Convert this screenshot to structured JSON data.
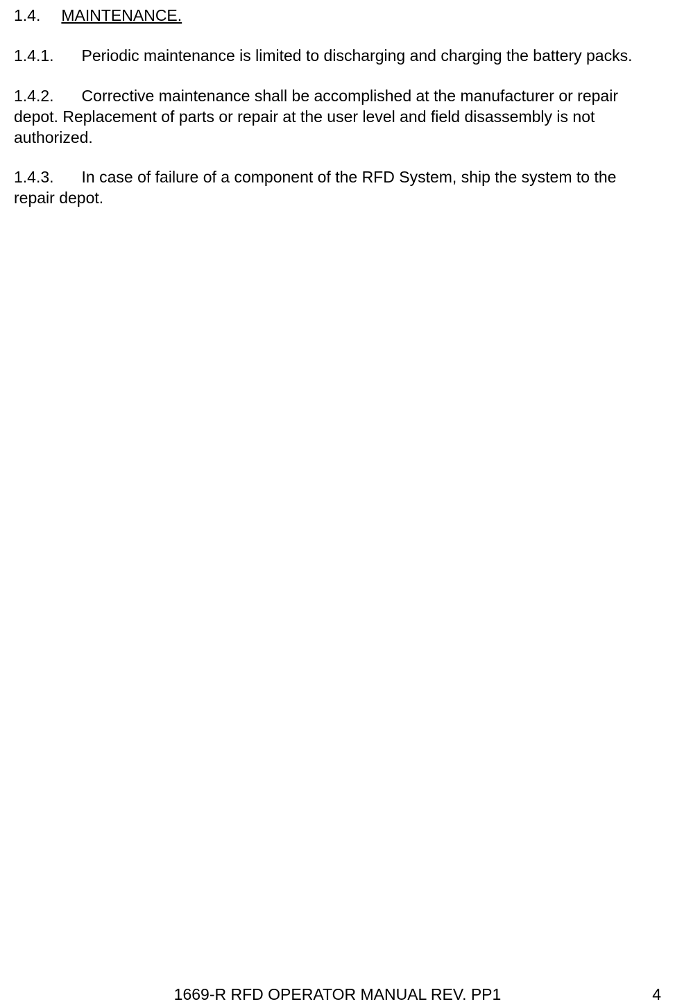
{
  "section": {
    "number": "1.4.",
    "title": "MAINTENANCE."
  },
  "paragraphs": [
    {
      "number": "1.4.1.",
      "text": "Periodic maintenance is limited to discharging and charging the battery packs."
    },
    {
      "number": "1.4.2.",
      "text": "Corrective maintenance shall be accomplished at the manufacturer or repair depot.  Replacement of parts or repair at the user level and field disassembly is not authorized."
    },
    {
      "number": "1.4.3.",
      "text": "In case of failure of a component of the RFD System, ship the system to the repair depot."
    }
  ],
  "footer": {
    "title": "1669-R RFD OPERATOR MANUAL REV. PP1",
    "page": "4"
  }
}
